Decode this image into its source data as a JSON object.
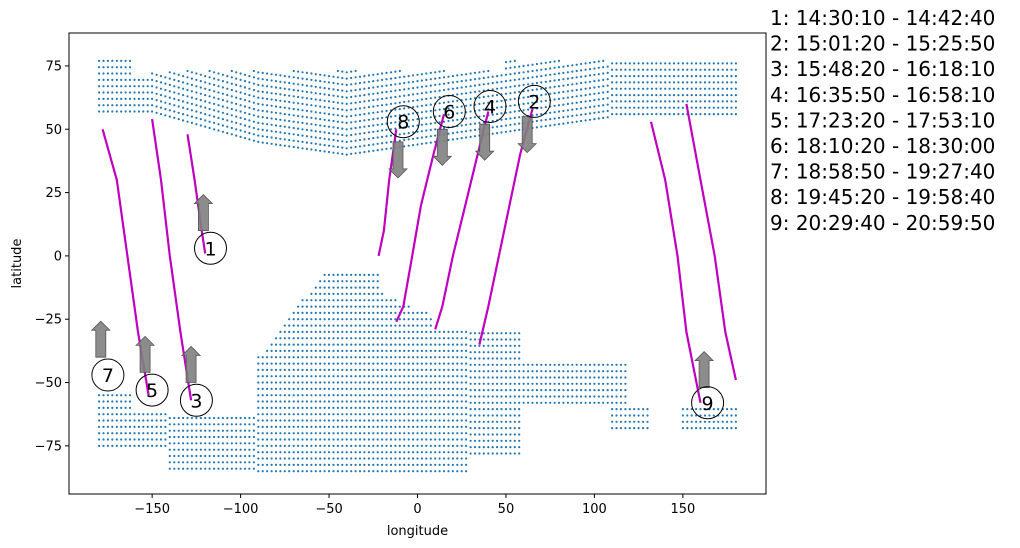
{
  "chart_data": {
    "type": "scatter",
    "title": "",
    "xlabel": "longitude",
    "ylabel": "latitude",
    "xlim": [
      -197,
      197
    ],
    "ylim": [
      -94,
      88
    ],
    "xticks": [
      -150,
      -100,
      -50,
      0,
      50,
      100,
      150
    ],
    "yticks": [
      -75,
      -50,
      -25,
      0,
      25,
      50,
      75
    ],
    "colors": {
      "coverage": "#1f77b4",
      "track": "#c000c0",
      "arrow": "#808080"
    },
    "coverage_bands": [
      {
        "lat_from": 77,
        "lat_to": 57,
        "x_start": [
          -180,
          -180,
          -180,
          -170,
          -155,
          -140,
          -110,
          -60,
          -20,
          30,
          80,
          120,
          150,
          180
        ],
        "x_end_lat": [
          77,
          75,
          73,
          72,
          70,
          67,
          62,
          58,
          57,
          58,
          60,
          64,
          70,
          76
        ]
      },
      {
        "lat_from": -49,
        "lat_to": -85
      }
    ],
    "tracks": [
      {
        "id": "1",
        "points": [
          [
            -130,
            48
          ],
          [
            -126,
            30
          ],
          [
            -122,
            10
          ],
          [
            -120,
            1
          ]
        ]
      },
      {
        "id": "2",
        "points": [
          [
            65,
            58
          ],
          [
            58,
            40
          ],
          [
            52,
            20
          ],
          [
            46,
            0
          ],
          [
            40,
            -20
          ],
          [
            35,
            -35
          ]
        ]
      },
      {
        "id": "3",
        "points": [
          [
            -150,
            54
          ],
          [
            -145,
            30
          ],
          [
            -140,
            0
          ],
          [
            -134,
            -30
          ],
          [
            -128,
            -57
          ]
        ]
      },
      {
        "id": "4",
        "points": [
          [
            40,
            57
          ],
          [
            34,
            40
          ],
          [
            27,
            20
          ],
          [
            20,
            0
          ],
          [
            14,
            -20
          ],
          [
            10,
            -29
          ]
        ]
      },
      {
        "id": "5",
        "points": [
          [
            -178,
            50
          ],
          [
            -170,
            30
          ],
          [
            -164,
            0
          ],
          [
            -158,
            -30
          ],
          [
            -152,
            -55
          ]
        ]
      },
      {
        "id": "6",
        "points": [
          [
            15,
            56
          ],
          [
            9,
            40
          ],
          [
            2,
            20
          ],
          [
            -3,
            0
          ],
          [
            -8,
            -20
          ],
          [
            -12,
            -26
          ]
        ]
      },
      {
        "id": "7",
        "points": [
          [
            132,
            53
          ],
          [
            140,
            30
          ],
          [
            147,
            0
          ],
          [
            152,
            -30
          ],
          [
            160,
            -58
          ]
        ]
      },
      {
        "id": "8",
        "points": [
          [
            -12,
            50
          ],
          [
            -16,
            30
          ],
          [
            -19,
            10
          ],
          [
            -22,
            0
          ]
        ]
      },
      {
        "id": "9",
        "points": [
          [
            152,
            60
          ],
          [
            160,
            30
          ],
          [
            168,
            0
          ],
          [
            174,
            -30
          ],
          [
            180,
            -49
          ]
        ]
      }
    ],
    "markers": [
      {
        "label": "1",
        "x": -117,
        "y": 3,
        "arrow": "up",
        "ax": -121,
        "ay": 10
      },
      {
        "label": "2",
        "x": 66,
        "y": 61,
        "arrow": "down",
        "ax": 62,
        "ay": 55
      },
      {
        "label": "3",
        "x": -125,
        "y": -57,
        "arrow": "up",
        "ax": -128,
        "ay": -50
      },
      {
        "label": "4",
        "x": 41,
        "y": 59,
        "arrow": "down",
        "ax": 38,
        "ay": 52
      },
      {
        "label": "5",
        "x": -150,
        "y": -53,
        "arrow": "up",
        "ax": -154,
        "ay": -46
      },
      {
        "label": "6",
        "x": 18,
        "y": 57,
        "arrow": "down",
        "ax": 14,
        "ay": 50
      },
      {
        "label": "7",
        "x": -175,
        "y": -47,
        "arrow": "up",
        "ax": -179,
        "ay": -40
      },
      {
        "label": "8",
        "x": -8,
        "y": 53,
        "arrow": "down",
        "ax": -11,
        "ay": 45
      },
      {
        "label": "9",
        "x": 164,
        "y": -58,
        "arrow": "up",
        "ax": 162,
        "ay": -52
      }
    ],
    "legend": [
      "1:  14:30:10 - 14:42:40",
      "2:  15:01:20 - 15:25:50",
      "3:  15:48:20 - 16:18:10",
      "4:  16:35:50 - 16:58:10",
      "5:  17:23:20 - 17:53:10",
      "6:  18:10:20 - 18:30:00",
      "7:  18:58:50 - 19:27:40",
      "8:  19:45:20 - 19:58:40",
      "9:  20:29:40 - 20:59:50"
    ]
  }
}
